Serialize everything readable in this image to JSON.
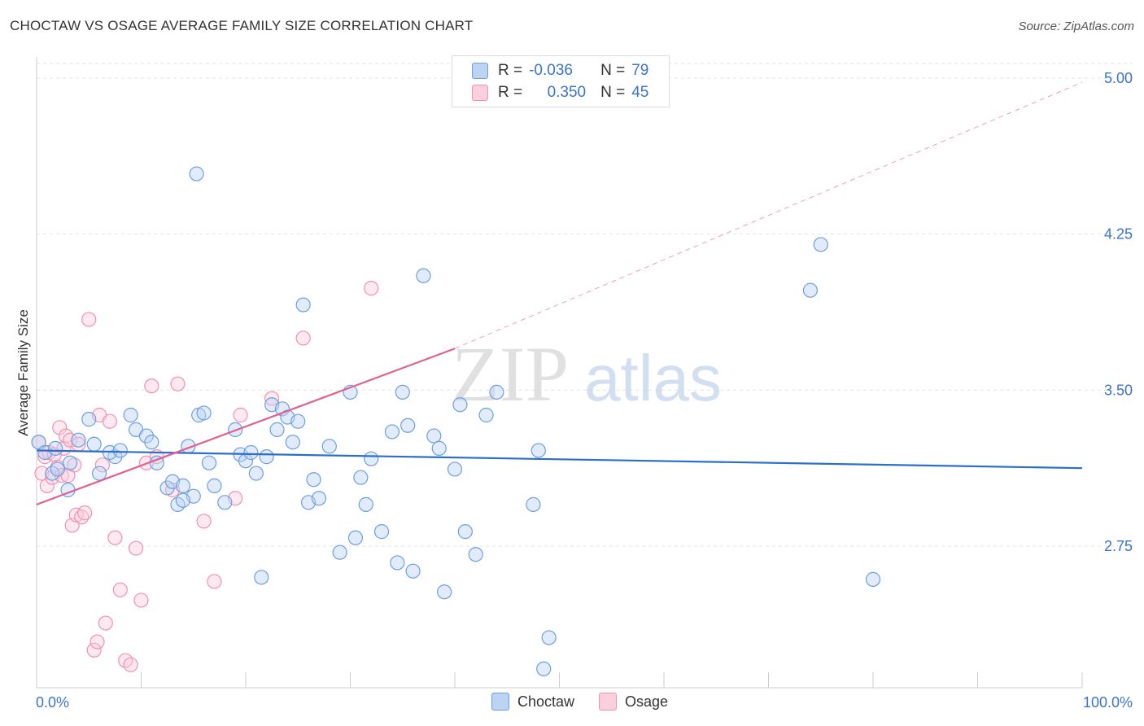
{
  "title": "CHOCTAW VS OSAGE AVERAGE FAMILY SIZE CORRELATION CHART",
  "source": "Source: ZipAtlas.com",
  "watermark": {
    "zip": "ZIP",
    "atlas": "atlas"
  },
  "legend": {
    "r_label": "R =",
    "n_label": "N =",
    "choctaw": {
      "r": "-0.036",
      "n": "79"
    },
    "osage": {
      "r": "0.350",
      "n": "45"
    }
  },
  "chart_data": {
    "type": "scatter",
    "title": "CHOCTAW VS OSAGE AVERAGE FAMILY SIZE CORRELATION CHART",
    "xlabel": "",
    "ylabel": "Average Family Size",
    "xlim": [
      0,
      100
    ],
    "ylim": [
      2.0,
      5.1
    ],
    "x_tick_labels": [
      "0.0%",
      "100.0%"
    ],
    "y_ticks": [
      2.75,
      3.5,
      4.25,
      5.0
    ],
    "y_tick_labels": [
      "2.75",
      "3.50",
      "4.25",
      "5.00"
    ],
    "colors": {
      "choctaw": "#6d9fe0",
      "osage": "#f092b0",
      "choctaw_line": "#2a6fcc",
      "osage_line": "#e06090"
    },
    "series": [
      {
        "name": "Choctaw",
        "points": [
          [
            0.2,
            3.25
          ],
          [
            0.8,
            3.2
          ],
          [
            1.5,
            3.1
          ],
          [
            1.8,
            3.22
          ],
          [
            2.0,
            3.12
          ],
          [
            3.0,
            3.02
          ],
          [
            3.2,
            3.15
          ],
          [
            4.0,
            3.26
          ],
          [
            5.0,
            3.36
          ],
          [
            5.5,
            3.24
          ],
          [
            6.0,
            3.1
          ],
          [
            7.5,
            3.18
          ],
          [
            7.0,
            3.2
          ],
          [
            8.0,
            3.21
          ],
          [
            9.0,
            3.38
          ],
          [
            9.5,
            3.31
          ],
          [
            10.5,
            3.28
          ],
          [
            11.0,
            3.25
          ],
          [
            11.5,
            3.15
          ],
          [
            12.5,
            3.03
          ],
          [
            13.0,
            3.06
          ],
          [
            13.5,
            2.95
          ],
          [
            14.0,
            3.04
          ],
          [
            14.5,
            3.23
          ],
          [
            15.0,
            2.99
          ],
          [
            15.5,
            3.38
          ],
          [
            16.0,
            3.39
          ],
          [
            16.5,
            3.15
          ],
          [
            17.0,
            3.04
          ],
          [
            18.0,
            2.96
          ],
          [
            19.0,
            3.31
          ],
          [
            19.5,
            3.19
          ],
          [
            20.0,
            3.16
          ],
          [
            20.5,
            3.2
          ],
          [
            21.0,
            3.1
          ],
          [
            22.0,
            3.18
          ],
          [
            22.5,
            3.43
          ],
          [
            23.0,
            3.31
          ],
          [
            23.5,
            3.41
          ],
          [
            24.0,
            3.37
          ],
          [
            24.5,
            3.25
          ],
          [
            25.0,
            3.35
          ],
          [
            25.5,
            3.91
          ],
          [
            26.0,
            2.96
          ],
          [
            26.5,
            3.07
          ],
          [
            27.0,
            2.98
          ],
          [
            28.0,
            3.23
          ],
          [
            29.0,
            2.72
          ],
          [
            30.0,
            3.49
          ],
          [
            30.5,
            2.79
          ],
          [
            31.0,
            3.08
          ],
          [
            31.5,
            2.95
          ],
          [
            32.0,
            3.17
          ],
          [
            33.0,
            2.82
          ],
          [
            34.0,
            3.3
          ],
          [
            34.5,
            2.67
          ],
          [
            35.0,
            3.49
          ],
          [
            35.5,
            3.33
          ],
          [
            36.0,
            2.63
          ],
          [
            37.0,
            4.05
          ],
          [
            38.0,
            3.28
          ],
          [
            38.5,
            3.22
          ],
          [
            39.0,
            2.53
          ],
          [
            40.0,
            3.12
          ],
          [
            40.5,
            3.43
          ],
          [
            41.0,
            2.82
          ],
          [
            42.0,
            2.71
          ],
          [
            43.0,
            3.38
          ],
          [
            44.0,
            3.49
          ],
          [
            47.5,
            2.95
          ],
          [
            48.0,
            3.21
          ],
          [
            48.5,
            2.16
          ],
          [
            49.0,
            2.31
          ],
          [
            74.0,
            3.98
          ],
          [
            75.0,
            4.2
          ],
          [
            80.0,
            2.59
          ],
          [
            14.0,
            2.97
          ],
          [
            21.5,
            2.6
          ],
          [
            15.3,
            4.54
          ]
        ]
      },
      {
        "name": "Osage",
        "points": [
          [
            0.2,
            3.25
          ],
          [
            0.5,
            3.1
          ],
          [
            0.8,
            3.18
          ],
          [
            1.0,
            3.04
          ],
          [
            1.2,
            3.2
          ],
          [
            1.5,
            3.08
          ],
          [
            1.7,
            3.19
          ],
          [
            2.0,
            3.13
          ],
          [
            2.2,
            3.32
          ],
          [
            2.4,
            3.09
          ],
          [
            2.6,
            3.22
          ],
          [
            2.8,
            3.28
          ],
          [
            3.0,
            3.09
          ],
          [
            3.2,
            3.26
          ],
          [
            3.4,
            2.85
          ],
          [
            3.6,
            3.14
          ],
          [
            3.8,
            2.9
          ],
          [
            4.0,
            3.24
          ],
          [
            4.3,
            2.89
          ],
          [
            4.6,
            2.91
          ],
          [
            5.0,
            3.84
          ],
          [
            5.5,
            2.25
          ],
          [
            5.8,
            2.29
          ],
          [
            6.0,
            3.38
          ],
          [
            6.3,
            3.14
          ],
          [
            6.6,
            2.38
          ],
          [
            7.0,
            3.35
          ],
          [
            7.5,
            2.79
          ],
          [
            8.0,
            2.54
          ],
          [
            8.5,
            2.2
          ],
          [
            9.0,
            2.18
          ],
          [
            9.5,
            2.74
          ],
          [
            10.0,
            2.49
          ],
          [
            10.5,
            3.15
          ],
          [
            11.0,
            3.52
          ],
          [
            11.5,
            3.18
          ],
          [
            13.0,
            3.02
          ],
          [
            13.5,
            3.53
          ],
          [
            16.0,
            2.87
          ],
          [
            17.0,
            2.58
          ],
          [
            19.0,
            2.98
          ],
          [
            19.5,
            3.38
          ],
          [
            22.5,
            3.46
          ],
          [
            25.5,
            3.75
          ],
          [
            32.0,
            3.99
          ]
        ]
      }
    ],
    "trendlines": [
      {
        "name": "Choctaw",
        "x": [
          0,
          100
        ],
        "y": [
          3.21,
          3.125
        ],
        "style": "solid"
      },
      {
        "name": "Osage",
        "x": [
          0,
          40
        ],
        "y": [
          2.95,
          3.7
        ],
        "style": "solid",
        "dashed_extension_to": [
          100,
          4.98
        ]
      }
    ]
  }
}
